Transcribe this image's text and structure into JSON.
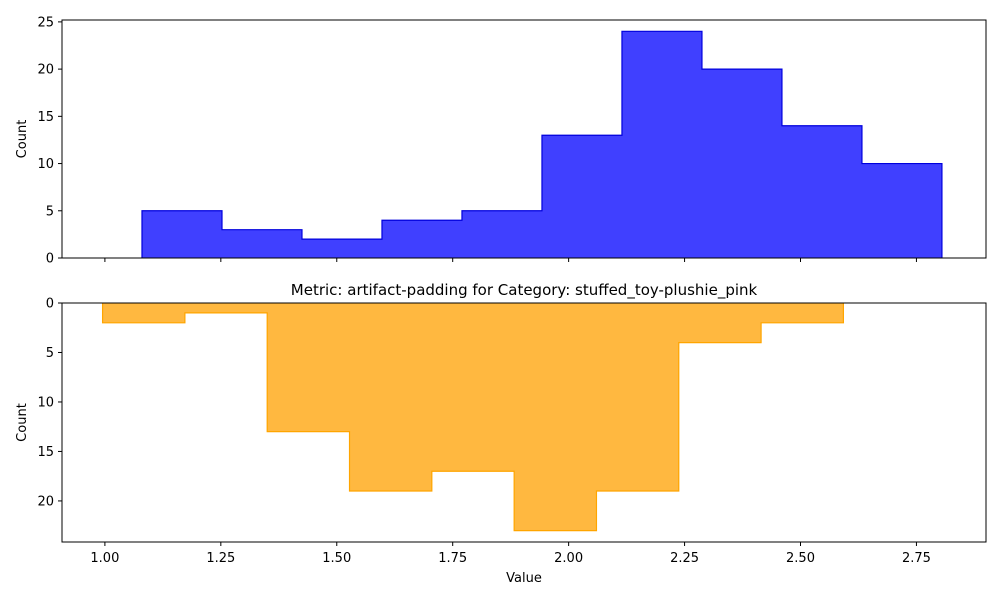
{
  "chart_data": [
    {
      "type": "histogram",
      "title": "",
      "xlabel": "",
      "ylabel": "Count",
      "xlim": [
        0.9075,
        2.9
      ],
      "ylim": [
        0,
        25.2
      ],
      "inverted_y": false,
      "fill_color": "#4040ff",
      "edge_color": "#0000dd",
      "yticks": [
        0,
        5,
        10,
        15,
        20,
        25
      ],
      "xticks": [
        1.0,
        1.25,
        1.5,
        1.75,
        2.0,
        2.25,
        2.5,
        2.75
      ],
      "show_xtick_labels": false,
      "bin_edges": [
        1.08,
        1.2525,
        1.425,
        1.5975,
        1.77,
        1.9425,
        2.115,
        2.2875,
        2.46,
        2.6325,
        2.805
      ],
      "counts": [
        5,
        3,
        2,
        4,
        5,
        13,
        24,
        20,
        14,
        10
      ]
    },
    {
      "type": "histogram",
      "title": "Metric: artifact-padding for Category: stuffed_toy-plushie_pink",
      "xlabel": "Value",
      "ylabel": "Count",
      "xlim": [
        0.9075,
        2.9
      ],
      "ylim": [
        0,
        24.15
      ],
      "inverted_y": true,
      "fill_color": "#ffb840",
      "edge_color": "#ffa500",
      "yticks": [
        0,
        5,
        10,
        15,
        20
      ],
      "xticks": [
        1.0,
        1.25,
        1.5,
        1.75,
        2.0,
        2.25,
        2.5,
        2.75
      ],
      "xtick_labels": [
        "1.00",
        "1.25",
        "1.50",
        "1.75",
        "2.00",
        "2.25",
        "2.50",
        "2.75"
      ],
      "show_xtick_labels": true,
      "bin_edges": [
        0.995,
        1.1725,
        1.35,
        1.5275,
        1.705,
        1.8825,
        2.06,
        2.2375,
        2.415,
        2.5925
      ],
      "counts": [
        2,
        1,
        13,
        19,
        17,
        23,
        19,
        4,
        2
      ]
    }
  ]
}
